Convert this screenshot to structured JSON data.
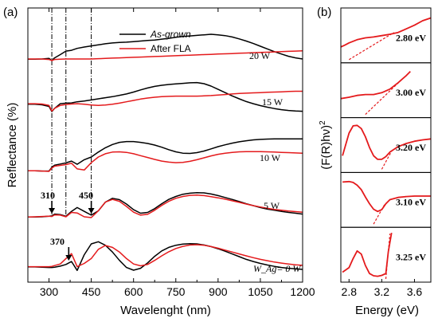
{
  "colors": {
    "as_grown": "#000000",
    "after_fla": "#e41a1c",
    "fit_line": "#e41a1c"
  },
  "chart_data": [
    {
      "type": "line",
      "panel_label": "(a)",
      "xlabel": "Wavelenght (nm)",
      "ylabel": "Reflectance (%)",
      "xlim": [
        225,
        1200
      ],
      "x_ticks": [
        300,
        450,
        600,
        750,
        900,
        1050,
        1200
      ],
      "y_ticks": "none",
      "grid": false,
      "legend": {
        "placement": "top-center",
        "entries": [
          "As-grown",
          "After FLA"
        ]
      },
      "reference_lines_nm": [
        310,
        360,
        450
      ],
      "offset_labels": [
        "20 W",
        "15 W",
        "10 W",
        "5 W",
        "W_Ag= 0 W"
      ],
      "annotations": [
        {
          "text": "310",
          "x": 310
        },
        {
          "text": "450",
          "x": 450
        },
        {
          "text": "370",
          "x": 370
        }
      ],
      "x": [
        225,
        250,
        275,
        300,
        310,
        320,
        340,
        360,
        380,
        400,
        425,
        450,
        475,
        500,
        525,
        550,
        575,
        600,
        625,
        650,
        675,
        700,
        725,
        750,
        775,
        800,
        825,
        850,
        875,
        900,
        925,
        950,
        975,
        1000,
        1025,
        1050,
        1075,
        1100,
        1125,
        1150,
        1175,
        1200
      ],
      "series": [
        {
          "name": "As-grown",
          "panel": "20 W",
          "values": [
            0.5,
            0.5,
            0.6,
            0.8,
            0.05,
            1.0,
            2.2,
            3.5,
            3.8,
            4.5,
            5.0,
            5.4,
            5.8,
            6.2,
            6.5,
            6.7,
            6.8,
            7.0,
            7.2,
            7.4,
            7.6,
            7.9,
            8.2,
            8.6,
            8.9,
            9.1,
            9.3,
            9.5,
            9.7,
            9.5,
            9.2,
            8.7,
            8.0,
            7.2,
            6.3,
            5.3,
            4.3,
            3.3,
            2.4,
            1.6,
            1.0,
            0.6
          ]
        },
        {
          "name": "After FLA",
          "panel": "20 W",
          "values": [
            0.6,
            0.6,
            0.6,
            0.4,
            0.0,
            0.4,
            0.5,
            0.6,
            0.6,
            0.6,
            0.6,
            0.6,
            0.7,
            0.8,
            0.9,
            1.0,
            1.1,
            1.2,
            1.3,
            1.4,
            1.5,
            1.6,
            1.7,
            1.8,
            1.9,
            2.0,
            2.1,
            2.2,
            2.3,
            2.4,
            2.5,
            2.6,
            2.7,
            2.8,
            2.9,
            3.0,
            3.1,
            3.2,
            3.3,
            3.4,
            3.5,
            3.6
          ]
        },
        {
          "name": "As-grown",
          "panel": "15 W",
          "values": [
            3.0,
            3.0,
            2.8,
            2.2,
            0.3,
            1.5,
            3.2,
            3.4,
            3.5,
            3.9,
            4.2,
            4.6,
            5.0,
            5.4,
            5.8,
            6.3,
            6.8,
            7.5,
            8.3,
            9.0,
            9.6,
            10.0,
            10.3,
            10.5,
            10.7,
            10.9,
            11.0,
            10.6,
            9.7,
            8.5,
            7.3,
            6.1,
            5.0,
            4.0,
            3.2,
            2.5,
            1.9,
            1.4,
            1.0,
            0.7,
            0.5,
            0.4
          ]
        },
        {
          "name": "After FLA",
          "panel": "15 W",
          "values": [
            3.2,
            3.2,
            3.1,
            2.6,
            0.5,
            1.5,
            2.6,
            2.9,
            3.1,
            3.2,
            3.0,
            2.7,
            2.6,
            2.7,
            3.0,
            3.4,
            3.9,
            4.4,
            4.9,
            5.3,
            5.6,
            5.8,
            5.9,
            6.0,
            6.0,
            6.0,
            6.0,
            6.1,
            6.2,
            6.4,
            6.6,
            6.8,
            7.0,
            7.1,
            7.2,
            7.3,
            7.4,
            7.5,
            7.6,
            7.7,
            7.8,
            7.8
          ]
        },
        {
          "name": "As-grown",
          "panel": "10 W",
          "values": [
            0.5,
            0.5,
            0.4,
            0.4,
            1.8,
            2.6,
            3.0,
            3.4,
            4.1,
            2.9,
            4.6,
            5.6,
            7.4,
            9.0,
            10.2,
            11.0,
            11.3,
            11.3,
            11.0,
            10.6,
            10.0,
            9.2,
            8.3,
            7.5,
            7.0,
            6.9,
            7.2,
            7.8,
            8.6,
            9.4,
            10.1,
            10.7,
            11.2,
            11.6,
            11.9,
            12.1,
            12.2,
            12.3,
            12.3,
            12.3,
            12.3,
            12.3
          ]
        },
        {
          "name": "After FLA",
          "panel": "10 W",
          "values": [
            0.5,
            0.5,
            0.4,
            0.3,
            1.5,
            2.2,
            2.5,
            2.8,
            3.3,
            1.2,
            0.8,
            3.5,
            5.6,
            6.8,
            7.4,
            7.5,
            7.3,
            6.8,
            6.1,
            5.4,
            4.7,
            4.1,
            3.7,
            3.5,
            3.6,
            4.0,
            4.6,
            5.3,
            6.0,
            6.6,
            7.0,
            7.3,
            7.5,
            7.6,
            7.6,
            7.6,
            7.5,
            7.4,
            7.3,
            7.2,
            7.1,
            7.0
          ]
        },
        {
          "name": "As-grown",
          "panel": "5 W",
          "values": [
            0.5,
            0.5,
            0.6,
            0.8,
            0.9,
            1.6,
            1.4,
            0.8,
            2.6,
            4.0,
            2.6,
            1.2,
            2.8,
            6.0,
            7.4,
            6.9,
            5.3,
            3.2,
            1.9,
            2.2,
            3.6,
            5.4,
            7.0,
            8.1,
            8.9,
            9.3,
            9.5,
            9.4,
            9.0,
            8.4,
            7.7,
            7.0,
            6.2,
            5.4,
            4.7,
            4.0,
            3.4,
            3.0,
            2.6,
            2.2,
            1.9,
            1.6
          ]
        },
        {
          "name": "After FLA",
          "panel": "5 W",
          "values": [
            0.5,
            0.6,
            0.7,
            0.8,
            0.7,
            1.3,
            1.2,
            0.6,
            2.2,
            2.0,
            0.6,
            0.3,
            2.8,
            6.0,
            7.0,
            6.3,
            4.4,
            2.3,
            1.2,
            1.5,
            3.0,
            4.8,
            6.3,
            7.4,
            8.1,
            8.5,
            8.6,
            8.4,
            8.0,
            7.6,
            7.1,
            6.5,
            5.9,
            5.3,
            4.7,
            4.2,
            3.7,
            3.3,
            3.0,
            2.7,
            2.5,
            2.3
          ]
        },
        {
          "name": "As-grown",
          "panel": "0 W",
          "values": [
            1.5,
            1.5,
            1.4,
            1.3,
            1.3,
            1.4,
            1.8,
            2.4,
            3.5,
            0.2,
            6.0,
            10.0,
            10.8,
            9.5,
            7.0,
            3.9,
            1.3,
            0.3,
            1.0,
            3.0,
            5.4,
            7.4,
            8.7,
            9.5,
            9.9,
            10.1,
            10.0,
            9.6,
            9.0,
            8.2,
            7.3,
            6.3,
            5.3,
            4.3,
            3.5,
            2.8,
            2.2,
            1.7,
            1.3,
            1.0,
            0.8,
            0.6
          ]
        },
        {
          "name": "After FLA",
          "panel": "0 W",
          "values": [
            1.6,
            1.6,
            1.6,
            1.6,
            1.7,
            2.0,
            2.6,
            4.6,
            6.4,
            1.6,
            2.8,
            4.6,
            8.0,
            9.4,
            8.7,
            7.0,
            4.6,
            2.6,
            1.9,
            2.4,
            3.9,
            5.6,
            7.1,
            8.3,
            9.1,
            9.6,
            9.7,
            9.5,
            9.0,
            8.4,
            7.7,
            7.0,
            6.3,
            5.6,
            4.9,
            4.3,
            3.8,
            3.3,
            2.9,
            2.6,
            2.3,
            2.1
          ]
        }
      ]
    },
    {
      "type": "line",
      "panel_label": "(b)",
      "xlabel": "Energy (eV)",
      "ylabel": "(F(R)hν)",
      "ylabel_superscript": "2",
      "xlim": [
        2.7,
        3.8
      ],
      "x_ticks": [
        2.8,
        3.2,
        3.6
      ],
      "y_ticks": "none",
      "grid": false,
      "panels": [
        {
          "label": "2.80 eV",
          "x": [
            2.7,
            2.75,
            2.8,
            2.9,
            3.0,
            3.1,
            3.2,
            3.3,
            3.4,
            3.5,
            3.6,
            3.7,
            3.8
          ],
          "y": [
            0.28,
            0.32,
            0.37,
            0.44,
            0.48,
            0.5,
            0.53,
            0.56,
            0.6,
            0.68,
            0.76,
            0.86,
            0.92
          ],
          "fit": {
            "x": [
              2.8,
              3.35
            ],
            "y": [
              0.0,
              0.6
            ]
          }
        },
        {
          "label": "3.00 eV",
          "x": [
            2.7,
            2.8,
            2.9,
            3.0,
            3.1,
            3.2,
            3.3,
            3.4,
            3.5,
            3.55
          ],
          "y": [
            0.35,
            0.38,
            0.42,
            0.44,
            0.44,
            0.48,
            0.56,
            0.7,
            0.86,
            0.95
          ],
          "fit": {
            "x": [
              3.0,
              3.45
            ],
            "y": [
              0.0,
              0.78
            ]
          }
        },
        {
          "label": "3.20 eV",
          "x": [
            2.72,
            2.8,
            2.85,
            2.9,
            2.95,
            3.0,
            3.05,
            3.1,
            3.15,
            3.2,
            3.25,
            3.3,
            3.4,
            3.5,
            3.6,
            3.7,
            3.8
          ],
          "y": [
            0.3,
            0.8,
            0.96,
            0.97,
            0.9,
            0.72,
            0.48,
            0.3,
            0.22,
            0.22,
            0.28,
            0.38,
            0.5,
            0.57,
            0.62,
            0.65,
            0.67
          ],
          "fit": {
            "x": [
              3.2,
              3.32
            ],
            "y": [
              0.0,
              0.4
            ]
          }
        },
        {
          "label": "3.10 eV",
          "x": [
            2.72,
            2.8,
            2.85,
            2.9,
            2.95,
            3.0,
            3.05,
            3.1,
            3.15,
            3.2,
            3.25,
            3.3,
            3.4,
            3.5,
            3.6,
            3.7,
            3.8
          ],
          "y": [
            0.93,
            0.94,
            0.92,
            0.86,
            0.76,
            0.6,
            0.45,
            0.33,
            0.28,
            0.32,
            0.45,
            0.54,
            0.59,
            0.61,
            0.62,
            0.62,
            0.62
          ],
          "fit": {
            "x": [
              3.1,
              3.24
            ],
            "y": [
              0.0,
              0.45
            ]
          }
        },
        {
          "label": "3.25 eV",
          "x": [
            2.72,
            2.8,
            2.85,
            2.9,
            2.95,
            3.0,
            3.05,
            3.1,
            3.15,
            3.2,
            3.25,
            3.28,
            3.32
          ],
          "y": [
            0.15,
            0.25,
            0.45,
            0.62,
            0.55,
            0.3,
            0.12,
            0.07,
            0.06,
            0.08,
            0.12,
            0.6,
            1.02
          ],
          "fit": {
            "x": [
              3.25,
              3.3
            ],
            "y": [
              0.0,
              1.0
            ]
          }
        }
      ]
    }
  ]
}
